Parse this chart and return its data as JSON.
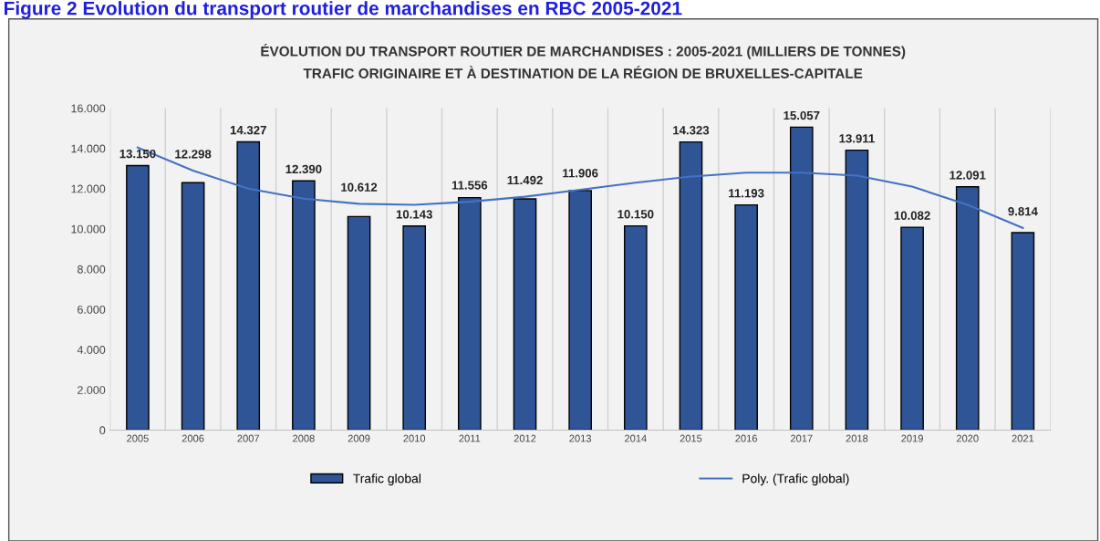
{
  "chart_data": {
    "type": "bar",
    "title": "ÉVOLUTION DU TRANSPORT ROUTIER DE MARCHANDISES : 2005-2021 (MILLIERS DE TONNES)",
    "subtitle": "TRAFIC ORIGINAIRE ET À DESTINATION DE LA RÉGION DE BRUXELLES-CAPITALE",
    "annotations": [
      "Figure 2 Evolution du transport routier de marchandises en RBC 2005-2021"
    ],
    "categories": [
      "2005",
      "2006",
      "2007",
      "2008",
      "2009",
      "2010",
      "2011",
      "2012",
      "2013",
      "2014",
      "2015",
      "2016",
      "2017",
      "2018",
      "2019",
      "2020",
      "2021"
    ],
    "series": [
      {
        "name": "Trafic global",
        "color": "#2f5597",
        "values": [
          13150,
          12298,
          14327,
          12390,
          10612,
          10143,
          11556,
          11492,
          11906,
          10150,
          14323,
          11193,
          15057,
          13911,
          10082,
          12091,
          9814
        ],
        "value_labels": [
          "13.150",
          "12.298",
          "14.327",
          "12.390",
          "10.612",
          "10.143",
          "11.556",
          "11.492",
          "11.906",
          "10.150",
          "14.323",
          "11.193",
          "15.057",
          "13.911",
          "10.082",
          "12.091",
          "9.814"
        ]
      },
      {
        "name": "Poly. (Trafic global)",
        "type": "line",
        "color": "#4472c4",
        "values": [
          14050,
          12900,
          12000,
          11500,
          11250,
          11200,
          11350,
          11600,
          11950,
          12300,
          12600,
          12800,
          12800,
          12650,
          12100,
          11200,
          10050
        ]
      }
    ],
    "ylim": [
      0,
      16000
    ],
    "yticks": [
      {
        "value": 0,
        "label": "0"
      },
      {
        "value": 2000,
        "label": "2.000"
      },
      {
        "value": 4000,
        "label": "4.000"
      },
      {
        "value": 6000,
        "label": "6.000"
      },
      {
        "value": 8000,
        "label": "8.000"
      },
      {
        "value": 10000,
        "label": "10.000"
      },
      {
        "value": 12000,
        "label": "12.000"
      },
      {
        "value": 14000,
        "label": "14.000"
      },
      {
        "value": 16000,
        "label": "16.000"
      }
    ],
    "grid": "x",
    "legend": "bottom",
    "marker": "none",
    "line_style": "solid"
  }
}
